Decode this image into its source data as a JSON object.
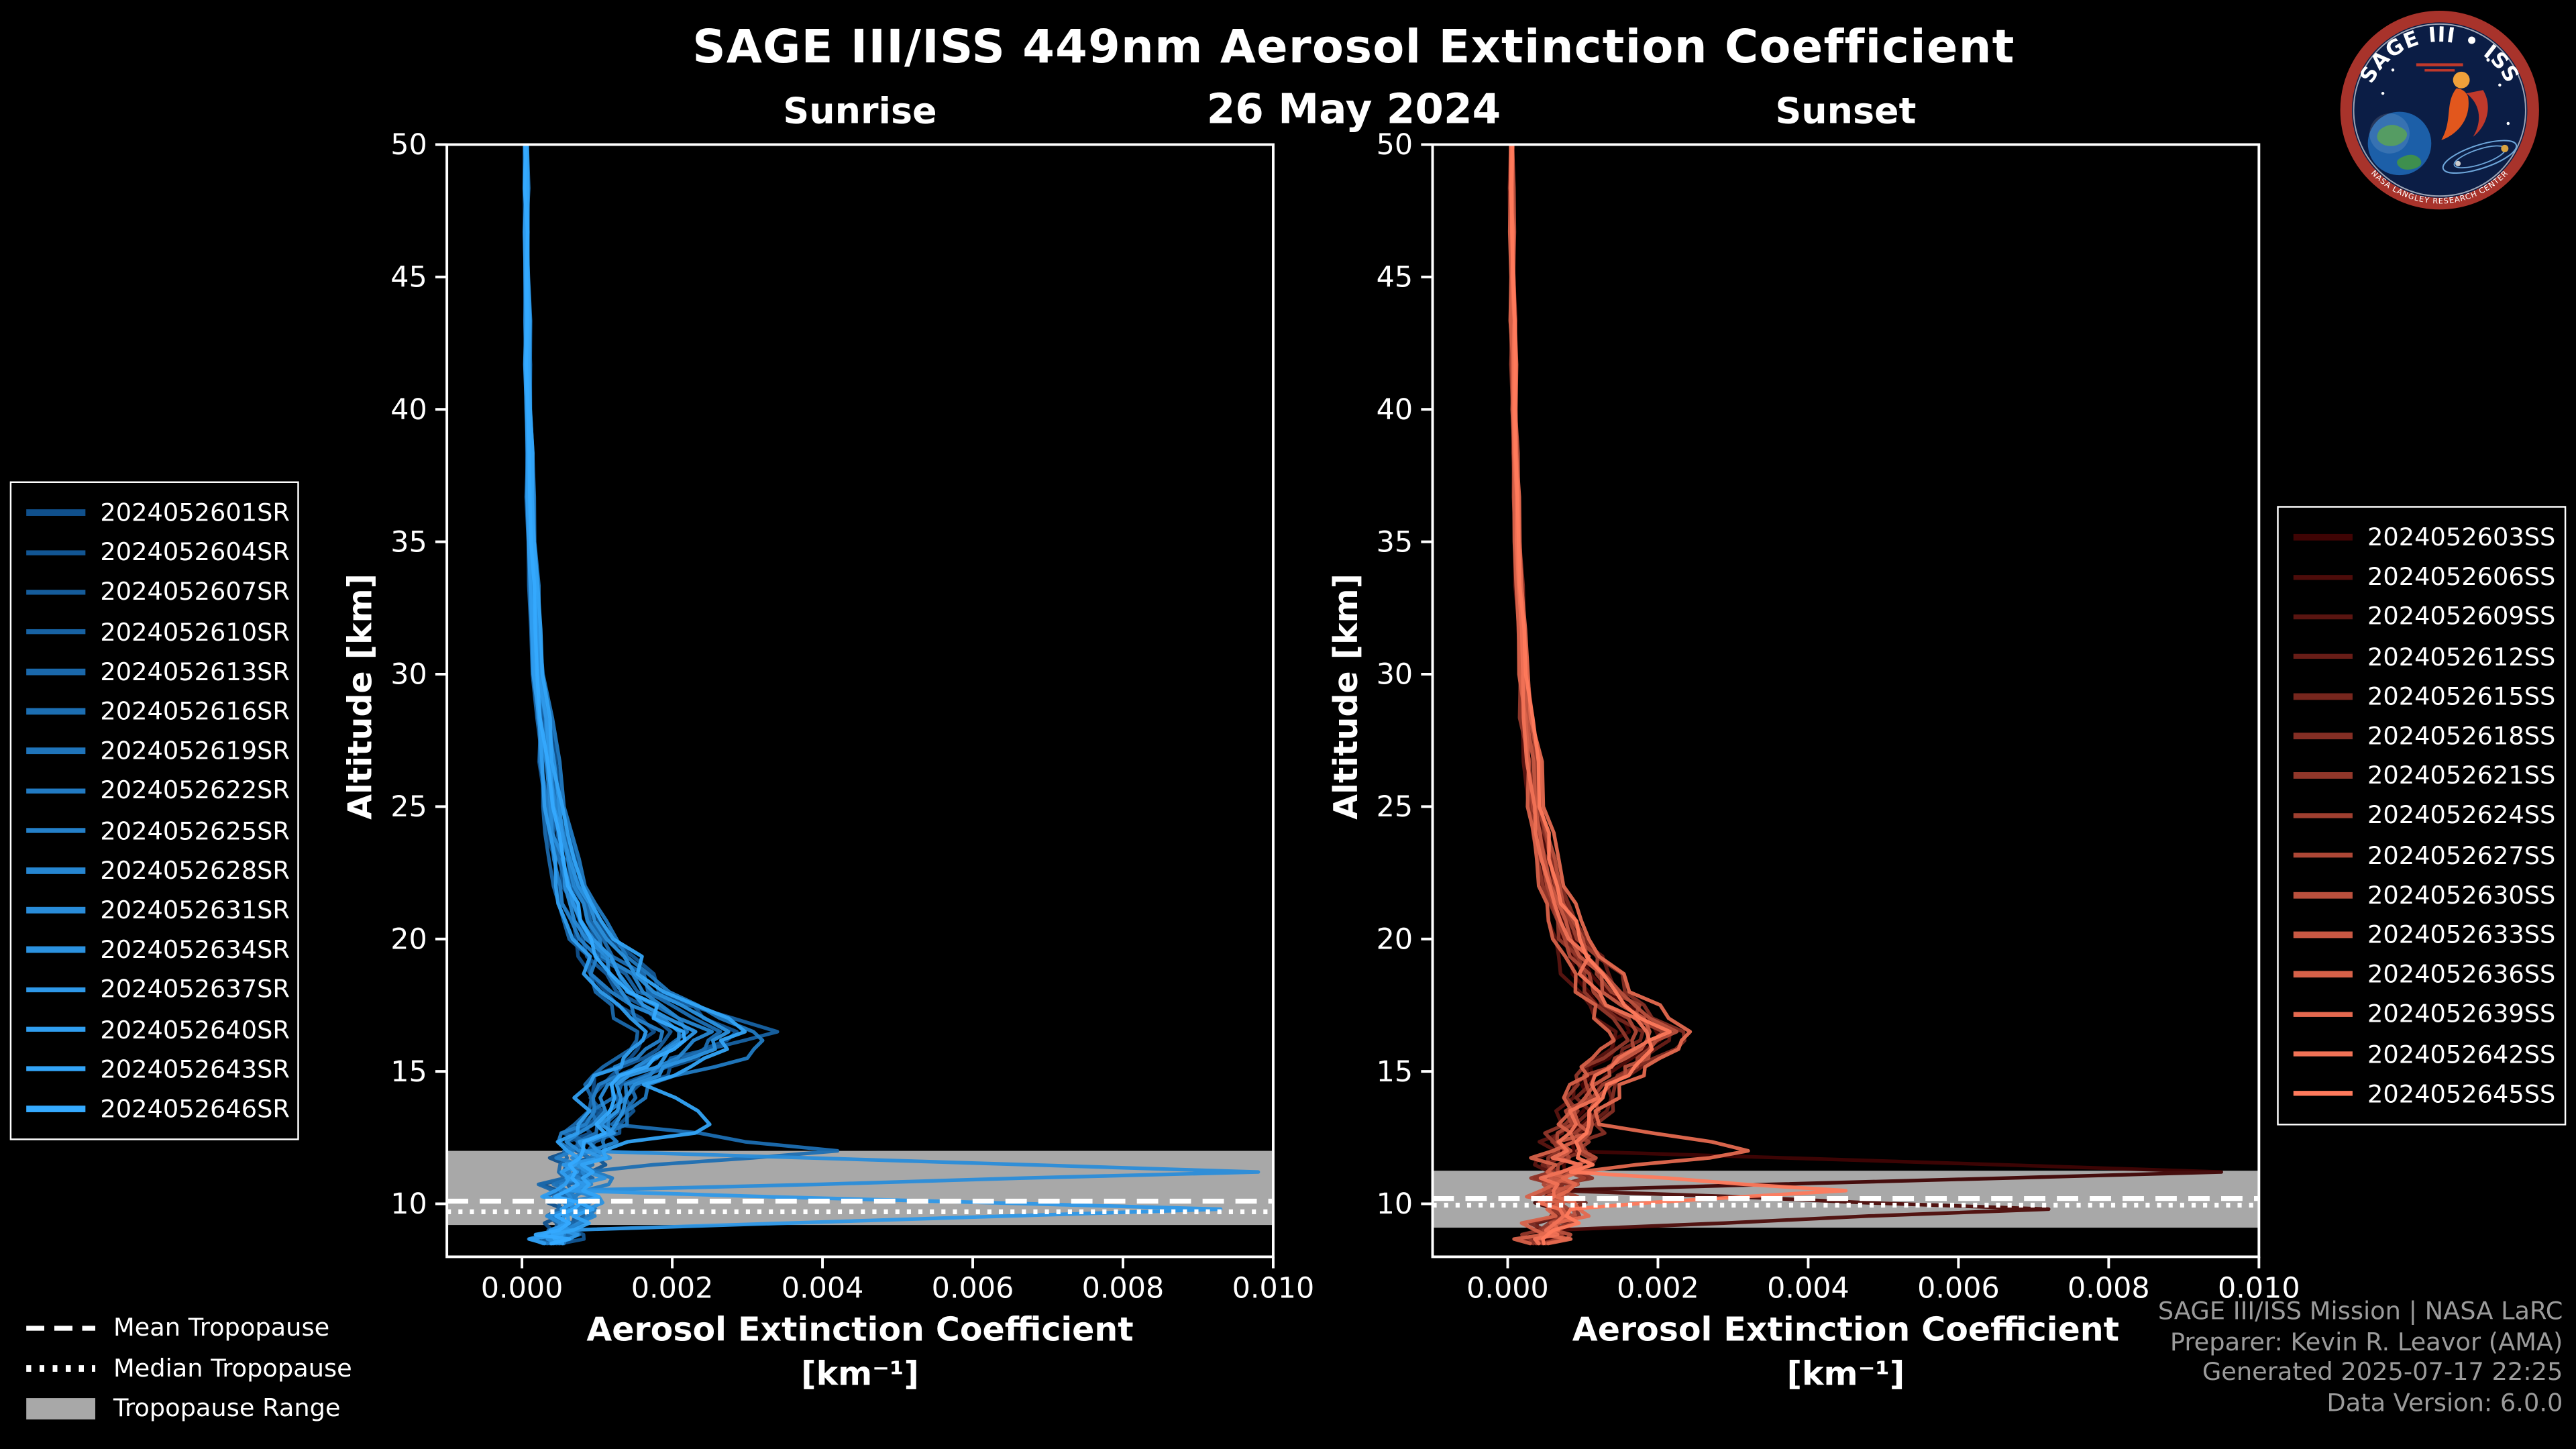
{
  "header": {
    "title": "SAGE III/ISS 449nm Aerosol Extinction Coefficient",
    "date": "26 May 2024"
  },
  "axes": {
    "ylabel": "Altitude [km]",
    "xlabel_line1": "Aerosol Extinction Coefficient",
    "xlabel_line2": "[km⁻¹]"
  },
  "tropopause_legend": {
    "items": [
      {
        "label": "Mean Tropopause",
        "style": "dashed"
      },
      {
        "label": "Median Tropopause",
        "style": "dotted"
      },
      {
        "label": "Tropopause Range",
        "style": "band"
      }
    ]
  },
  "credits": {
    "lines": [
      "SAGE III/ISS Mission | NASA LaRC",
      "Preparer: Kevin R. Leavor (AMA)",
      "Generated 2025-07-17 22:25",
      "Data Version: 6.0.0"
    ]
  },
  "logo": {
    "title": "SAGE III • ISS",
    "ring_text": "NASA LANGLEY RESEARCH CENTER"
  },
  "colors": {
    "background": "#000000",
    "axis": "#ffffff",
    "tropopause_band": "#a8a8a8",
    "credits_text": "#9b9b9b"
  },
  "chart_data": [
    {
      "type": "line",
      "title": "Sunrise",
      "xlabel": "Aerosol Extinction Coefficient [km⁻¹]",
      "ylabel": "Altitude [km]",
      "xlim": [
        -0.001,
        0.01
      ],
      "ylim": [
        8,
        50
      ],
      "legend_position": "outside-left",
      "x_tick_values": [
        0,
        0.002,
        0.004,
        0.006,
        0.008,
        0.01
      ],
      "x_tick_labels": [
        "0.000",
        "0.002",
        "0.004",
        "0.006",
        "0.008",
        "0.010"
      ],
      "y_tick_values": [
        10,
        15,
        20,
        25,
        30,
        35,
        40,
        45,
        50
      ],
      "y_tick_labels": [
        "10",
        "15",
        "20",
        "25",
        "30",
        "35",
        "40",
        "45",
        "50"
      ],
      "tropopause": {
        "mean": 10.1,
        "median": 9.7,
        "range": [
          9.2,
          12.0
        ]
      },
      "altitudes": [
        50,
        45,
        40,
        35,
        30,
        25,
        22,
        20,
        18,
        16.5,
        15.5,
        14.5,
        13,
        12,
        11.2,
        10.5,
        9.8,
        9,
        8.5
      ],
      "series": [
        {
          "name": "2024052601SR",
          "color": "#10508C",
          "values": [
            4e-05,
            4.8e-05,
            6.4e-05,
            9.6e-05,
            0.00016,
            0.00032,
            0.00048,
            0.00072,
            0.00112,
            0.00176,
            0.00144,
            0.00096,
            0.0008,
            0.00064,
            0.00056,
            0.00048,
            0.00056,
            0.0004,
            0.00032
          ]
        },
        {
          "name": "2024052604SR",
          "color": "#125694",
          "values": [
            6.5e-05,
            7.8e-05,
            0.000104,
            0.000156,
            0.00026,
            0.00052,
            0.00078,
            0.00117,
            0.00182,
            0.00286,
            0.00234,
            0.00156,
            0.0013,
            0.00104,
            0.00091,
            0.00078,
            0.00091,
            0.00065,
            0.00052
          ]
        },
        {
          "name": "2024052607SR",
          "color": "#155C9B",
          "values": [
            4.5e-05,
            5.4e-05,
            7.2e-05,
            0.000108,
            0.00018,
            0.00036,
            0.00054,
            0.00081,
            0.00126,
            0.00198,
            0.00162,
            0.00108,
            0.0009,
            0.00072,
            0.00063,
            0.00054,
            0.00063,
            0.00045,
            0.00036
          ]
        },
        {
          "name": "2024052610SR",
          "color": "#1762A3",
          "values": [
            5.5e-05,
            6.6e-05,
            8.8e-05,
            0.000132,
            0.00022,
            0.00044,
            0.00066,
            0.00099,
            0.00154,
            0.0034,
            0.00198,
            0.00132,
            0.0011,
            0.00088,
            0.00077,
            0.00066,
            0.00077,
            0.00055,
            0.00044
          ]
        },
        {
          "name": "2024052613SR",
          "color": "#1A68AB",
          "values": [
            3.5e-05,
            4.2e-05,
            5.6e-05,
            8.4e-05,
            0.00014,
            0.00028,
            0.00042,
            0.00063,
            0.00098,
            0.00154,
            0.00126,
            0.00084,
            0.0007,
            0.00056,
            0.00049,
            0.00042,
            0.00049,
            0.00035,
            0.00028
          ]
        },
        {
          "name": "2024052616SR",
          "color": "#1C6EB2",
          "values": [
            6e-05,
            7.2e-05,
            9.6e-05,
            0.000144,
            0.00024,
            0.00048,
            0.00072,
            0.00108,
            0.00168,
            0.00264,
            0.00216,
            0.00144,
            0.0012,
            0.0042,
            0.00084,
            0.00072,
            0.00084,
            0.0006,
            0.00048
          ]
        },
        {
          "name": "2024052619SR",
          "color": "#1F74BA",
          "values": [
            5e-05,
            6e-05,
            8e-05,
            0.00012,
            0.0002,
            0.0004,
            0.0006,
            0.0009,
            0.0014,
            0.0022,
            0.0018,
            0.0012,
            0.001,
            0.0008,
            0.0007,
            0.0006,
            0.0007,
            0.0005,
            0.0004
          ]
        },
        {
          "name": "2024052622SR",
          "color": "#217AC2",
          "values": [
            7e-05,
            8.4e-05,
            0.000112,
            0.000168,
            0.00028,
            0.00056,
            0.00084,
            0.00126,
            0.00196,
            0.00308,
            0.003,
            0.00168,
            0.0014,
            0.00112,
            0.00098,
            0.00084,
            0.00098,
            0.0007,
            0.00056
          ]
        },
        {
          "name": "2024052625SR",
          "color": "#2480C9",
          "values": [
            4.3e-05,
            5.1e-05,
            6.8e-05,
            0.000102,
            0.00017,
            0.00034,
            0.00051,
            0.000765,
            0.00119,
            0.00187,
            0.00153,
            0.00102,
            0.00085,
            0.00068,
            0.000595,
            0.00051,
            0.000595,
            0.000425,
            0.00034
          ]
        },
        {
          "name": "2024052628SR",
          "color": "#2686D1",
          "values": [
            5.8e-05,
            6.9e-05,
            9.2e-05,
            0.000138,
            0.00023,
            0.00046,
            0.00069,
            0.001035,
            0.00161,
            0.00253,
            0.00207,
            0.00138,
            0.00115,
            0.00092,
            0.000805,
            0.00069,
            0.000805,
            0.000575,
            0.00046
          ]
        },
        {
          "name": "2024052631SR",
          "color": "#298CD9",
          "values": [
            4.8e-05,
            5.7e-05,
            7.6e-05,
            0.000114,
            0.00019,
            0.00038,
            0.00057,
            0.000855,
            0.00133,
            0.00209,
            0.00171,
            0.00114,
            0.00095,
            0.00076,
            0.0098,
            0.00057,
            0.000665,
            0.000475,
            0.00038
          ]
        },
        {
          "name": "2024052634SR",
          "color": "#2B92E0",
          "values": [
            6.3e-05,
            7.5e-05,
            0.0001,
            0.00015,
            0.00025,
            0.0005,
            0.00075,
            0.001125,
            0.00175,
            0.00275,
            0.00225,
            0.0015,
            0.00125,
            0.001,
            0.000875,
            0.00075,
            0.000875,
            0.000625,
            0.0005
          ]
        },
        {
          "name": "2024052637SR",
          "color": "#2E98E8",
          "values": [
            5.3e-05,
            6.3e-05,
            8.4e-05,
            0.000126,
            0.00021,
            0.00042,
            0.00063,
            0.000945,
            0.00147,
            0.00231,
            0.00189,
            0.00126,
            0.00105,
            0.00084,
            0.000735,
            0.00063,
            0.0093,
            0.000525,
            0.00042
          ]
        },
        {
          "name": "2024052640SR",
          "color": "#309EF0",
          "values": [
            3.8e-05,
            4.5e-05,
            6e-05,
            9e-05,
            0.00015,
            0.0003,
            0.00045,
            0.000675,
            0.00105,
            0.00165,
            0.00135,
            0.0009,
            0.00075,
            0.0006,
            0.000525,
            0.00045,
            0.000525,
            0.000375,
            0.0003
          ]
        },
        {
          "name": "2024052643SR",
          "color": "#33A4F7",
          "values": [
            6.8e-05,
            8.1e-05,
            0.000108,
            0.000162,
            0.00027,
            0.00054,
            0.00081,
            0.001215,
            0.00189,
            0.00297,
            0.00243,
            0.00162,
            0.0025,
            0.00108,
            0.000945,
            0.00081,
            0.000945,
            0.000675,
            0.00054
          ]
        },
        {
          "name": "2024052646SR",
          "color": "#35AAFF",
          "values": [
            5e-05,
            6e-05,
            8e-05,
            0.00012,
            0.0002,
            0.00041,
            0.00061,
            0.00092,
            0.00142,
            0.00215,
            0.00176,
            0.00119,
            0.00099,
            0.00081,
            0.00071,
            0.00061,
            0.00069,
            0.00049,
            0.00039
          ]
        }
      ]
    },
    {
      "type": "line",
      "title": "Sunset",
      "xlabel": "Aerosol Extinction Coefficient [km⁻¹]",
      "ylabel": "Altitude [km]",
      "xlim": [
        -0.001,
        0.01
      ],
      "ylim": [
        8,
        50
      ],
      "legend_position": "outside-right",
      "x_tick_values": [
        0,
        0.002,
        0.004,
        0.006,
        0.008,
        0.01
      ],
      "x_tick_labels": [
        "0.000",
        "0.002",
        "0.004",
        "0.006",
        "0.008",
        "0.010"
      ],
      "y_tick_values": [
        10,
        15,
        20,
        25,
        30,
        35,
        40,
        45,
        50
      ],
      "y_tick_labels": [
        "10",
        "15",
        "20",
        "25",
        "30",
        "35",
        "40",
        "45",
        "50"
      ],
      "tropopause": {
        "mean": 10.2,
        "median": 9.95,
        "range": [
          9.1,
          11.25
        ]
      },
      "altitudes": [
        50,
        45,
        40,
        35,
        30,
        25,
        22,
        20,
        18,
        16.5,
        15.5,
        14.5,
        13,
        12,
        11.2,
        10.5,
        9.8,
        9,
        8.5
      ],
      "series": [
        {
          "name": "2024052603SS",
          "color": "#3F0404",
          "values": [
            4.5e-05,
            5.4e-05,
            7.2e-05,
            0.000108,
            0.00018,
            0.000315,
            0.000495,
            0.00072,
            0.00108,
            0.00162,
            0.00135,
            0.00099,
            0.00081,
            0.00072,
            0.0095,
            0.00054,
            0.00063,
            0.00045,
            0.00036
          ]
        },
        {
          "name": "2024052606SS",
          "color": "#4D0C0A",
          "values": [
            5.5e-05,
            6.6e-05,
            8.8e-05,
            0.000132,
            0.00022,
            0.000385,
            0.000605,
            0.00088,
            0.00132,
            0.00198,
            0.00165,
            0.00121,
            0.00099,
            0.00088,
            0.00077,
            0.00066,
            0.0072,
            0.00055,
            0.00044
          ]
        },
        {
          "name": "2024052609SS",
          "color": "#5A1511",
          "values": [
            4e-05,
            4.8e-05,
            6.4e-05,
            9.6e-05,
            0.00016,
            0.00028,
            0.00044,
            0.00064,
            0.00096,
            0.00144,
            0.0012,
            0.00088,
            0.00072,
            0.00064,
            0.00056,
            0.00048,
            0.00056,
            0.0004,
            0.00032
          ]
        },
        {
          "name": "2024052612SS",
          "color": "#681D17",
          "values": [
            6e-05,
            7.2e-05,
            9.6e-05,
            0.000144,
            0.00024,
            0.00042,
            0.00066,
            0.00096,
            0.00144,
            0.00216,
            0.0018,
            0.00132,
            0.00108,
            0.00096,
            0.00084,
            0.00072,
            0.00084,
            0.0006,
            0.00048
          ]
        },
        {
          "name": "2024052615SS",
          "color": "#76261D",
          "values": [
            5e-05,
            6e-05,
            8e-05,
            0.00012,
            0.0002,
            0.00035,
            0.00055,
            0.0008,
            0.0012,
            0.0018,
            0.0015,
            0.0011,
            0.0009,
            0.0008,
            0.0007,
            0.0006,
            0.0007,
            0.0005,
            0.0004
          ]
        },
        {
          "name": "2024052618SS",
          "color": "#842E24",
          "values": [
            6.5e-05,
            7.8e-05,
            0.000104,
            0.000156,
            0.00026,
            0.000455,
            0.000715,
            0.00104,
            0.00156,
            0.00234,
            0.00195,
            0.00143,
            0.00117,
            0.00104,
            0.00091,
            0.00078,
            0.00091,
            0.00065,
            0.00052
          ]
        },
        {
          "name": "2024052621SS",
          "color": "#91372A",
          "values": [
            4.3e-05,
            5.1e-05,
            6.8e-05,
            0.000102,
            0.00017,
            0.0003,
            0.00047,
            0.00068,
            0.00102,
            0.00153,
            0.00128,
            0.000935,
            0.000765,
            0.00068,
            0.000595,
            0.00051,
            0.000595,
            0.000425,
            0.00034
          ]
        },
        {
          "name": "2024052624SS",
          "color": "#9F3F30",
          "values": [
            5.8e-05,
            6.9e-05,
            9.2e-05,
            0.000138,
            0.00023,
            0.0004,
            0.000633,
            0.00092,
            0.00138,
            0.00207,
            0.001725,
            0.001265,
            0.001035,
            0.00092,
            0.000805,
            0.00069,
            0.000805,
            0.000575,
            0.00046
          ]
        },
        {
          "name": "2024052627SS",
          "color": "#AD4736",
          "values": [
            4.8e-05,
            5.7e-05,
            7.6e-05,
            0.000114,
            0.00019,
            0.000333,
            0.000523,
            0.00076,
            0.00114,
            0.00171,
            0.001425,
            0.001045,
            0.000855,
            0.00076,
            0.000665,
            0.00057,
            0.000665,
            0.000475,
            0.00038
          ]
        },
        {
          "name": "2024052630SS",
          "color": "#BA503D",
          "values": [
            6.3e-05,
            7.5e-05,
            0.0001,
            0.00015,
            0.00025,
            0.000438,
            0.000688,
            0.001,
            0.0015,
            0.00225,
            0.001875,
            0.001375,
            0.001125,
            0.001,
            0.000875,
            0.00075,
            0.000875,
            0.000625,
            0.0005
          ]
        },
        {
          "name": "2024052633SS",
          "color": "#C85843",
          "values": [
            5.3e-05,
            6.3e-05,
            8.4e-05,
            0.000126,
            0.00021,
            0.000368,
            0.000578,
            0.00084,
            0.00126,
            0.00189,
            0.001575,
            0.001155,
            0.000945,
            0.00084,
            0.000735,
            0.00063,
            0.000735,
            0.000525,
            0.00042
          ]
        },
        {
          "name": "2024052636SS",
          "color": "#D66149",
          "values": [
            3.8e-05,
            4.5e-05,
            6e-05,
            9e-05,
            0.00015,
            0.000263,
            0.000413,
            0.0006,
            0.0009,
            0.00135,
            0.001125,
            0.000825,
            0.000675,
            0.0006,
            0.000525,
            0.00045,
            0.000525,
            0.000375,
            0.0003
          ]
        },
        {
          "name": "2024052639SS",
          "color": "#E4694F",
          "values": [
            6.8e-05,
            8.1e-05,
            0.000108,
            0.000162,
            0.00027,
            0.000473,
            0.000743,
            0.00108,
            0.00162,
            0.00243,
            0.002025,
            0.001485,
            0.001215,
            0.0032,
            0.000945,
            0.00081,
            0.000945,
            0.000675,
            0.00054
          ]
        },
        {
          "name": "2024052642SS",
          "color": "#F17256",
          "values": [
            5e-05,
            6e-05,
            8e-05,
            0.00012,
            0.0002,
            0.00036,
            0.00056,
            0.00081,
            0.00122,
            0.00185,
            0.00148,
            0.00112,
            0.00091,
            0.00079,
            0.00071,
            0.00061,
            0.00069,
            0.00051,
            0.00041
          ]
        },
        {
          "name": "2024052645SS",
          "color": "#FF7A5C",
          "values": [
            6e-05,
            7.2e-05,
            9.6e-05,
            0.000144,
            0.00024,
            0.00042,
            0.00066,
            0.00096,
            0.00144,
            0.00216,
            0.0018,
            0.00132,
            0.00108,
            0.00096,
            0.00084,
            0.0045,
            0.00084,
            0.0006,
            0.00048
          ]
        }
      ]
    }
  ]
}
